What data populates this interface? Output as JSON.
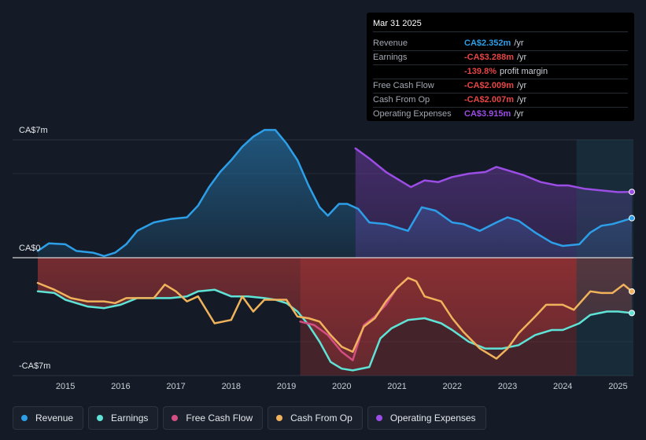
{
  "chart_data": {
    "type": "area",
    "y_unit": "CA$m",
    "ylim": [
      -7,
      7
    ],
    "xlim": [
      2014.5,
      2025.25
    ],
    "y_labels": {
      "top": "CA$7m",
      "zero": "CA$0",
      "bottom": "-CA$7m"
    },
    "x_ticks": [
      "2015",
      "2016",
      "2017",
      "2018",
      "2019",
      "2020",
      "2021",
      "2022",
      "2023",
      "2024",
      "2025"
    ],
    "series": [
      {
        "name": "Revenue",
        "color": "#2d9fe8",
        "points": [
          [
            2014.5,
            0.4
          ],
          [
            2014.7,
            0.85
          ],
          [
            2015.0,
            0.8
          ],
          [
            2015.2,
            0.4
          ],
          [
            2015.5,
            0.3
          ],
          [
            2015.7,
            0.1
          ],
          [
            2015.9,
            0.3
          ],
          [
            2016.1,
            0.8
          ],
          [
            2016.3,
            1.6
          ],
          [
            2016.6,
            2.1
          ],
          [
            2016.9,
            2.3
          ],
          [
            2017.2,
            2.4
          ],
          [
            2017.4,
            3.1
          ],
          [
            2017.6,
            4.2
          ],
          [
            2017.8,
            5.1
          ],
          [
            2018.0,
            5.8
          ],
          [
            2018.2,
            6.6
          ],
          [
            2018.4,
            7.2
          ],
          [
            2018.6,
            7.6
          ],
          [
            2018.8,
            7.6
          ],
          [
            2019.0,
            6.8
          ],
          [
            2019.2,
            5.8
          ],
          [
            2019.4,
            4.3
          ],
          [
            2019.6,
            3.0
          ],
          [
            2019.75,
            2.5
          ],
          [
            2019.95,
            3.2
          ],
          [
            2020.1,
            3.2
          ],
          [
            2020.3,
            2.9
          ],
          [
            2020.5,
            2.1
          ],
          [
            2020.8,
            2.0
          ],
          [
            2021.0,
            1.8
          ],
          [
            2021.2,
            1.6
          ],
          [
            2021.45,
            3.0
          ],
          [
            2021.7,
            2.8
          ],
          [
            2022.0,
            2.1
          ],
          [
            2022.2,
            2.0
          ],
          [
            2022.5,
            1.6
          ],
          [
            2022.8,
            2.1
          ],
          [
            2023.0,
            2.4
          ],
          [
            2023.2,
            2.2
          ],
          [
            2023.5,
            1.5
          ],
          [
            2023.8,
            0.9
          ],
          [
            2024.0,
            0.7
          ],
          [
            2024.3,
            0.8
          ],
          [
            2024.5,
            1.5
          ],
          [
            2024.7,
            1.9
          ],
          [
            2024.9,
            2.0
          ],
          [
            2025.1,
            2.2
          ],
          [
            2025.25,
            2.352
          ]
        ]
      },
      {
        "name": "Earnings",
        "color": "#5ee3d6",
        "points": [
          [
            2014.5,
            -2.0
          ],
          [
            2014.8,
            -2.1
          ],
          [
            2015.0,
            -2.5
          ],
          [
            2015.4,
            -2.9
          ],
          [
            2015.7,
            -3.0
          ],
          [
            2016.0,
            -2.8
          ],
          [
            2016.3,
            -2.4
          ],
          [
            2016.6,
            -2.4
          ],
          [
            2016.9,
            -2.4
          ],
          [
            2017.2,
            -2.3
          ],
          [
            2017.4,
            -2.0
          ],
          [
            2017.7,
            -1.9
          ],
          [
            2018.0,
            -2.3
          ],
          [
            2018.3,
            -2.3
          ],
          [
            2018.6,
            -2.4
          ],
          [
            2018.8,
            -2.5
          ],
          [
            2019.0,
            -2.7
          ],
          [
            2019.2,
            -3.2
          ],
          [
            2019.4,
            -4.0
          ],
          [
            2019.6,
            -5.0
          ],
          [
            2019.8,
            -6.2
          ],
          [
            2020.0,
            -6.6
          ],
          [
            2020.2,
            -6.7
          ],
          [
            2020.5,
            -6.5
          ],
          [
            2020.7,
            -4.8
          ],
          [
            2020.9,
            -4.2
          ],
          [
            2021.2,
            -3.7
          ],
          [
            2021.5,
            -3.6
          ],
          [
            2021.8,
            -3.9
          ],
          [
            2022.0,
            -4.3
          ],
          [
            2022.3,
            -5.0
          ],
          [
            2022.6,
            -5.4
          ],
          [
            2022.9,
            -5.4
          ],
          [
            2023.2,
            -5.2
          ],
          [
            2023.5,
            -4.6
          ],
          [
            2023.8,
            -4.3
          ],
          [
            2024.0,
            -4.3
          ],
          [
            2024.3,
            -3.9
          ],
          [
            2024.5,
            -3.4
          ],
          [
            2024.8,
            -3.2
          ],
          [
            2025.0,
            -3.2
          ],
          [
            2025.25,
            -3.288
          ]
        ]
      },
      {
        "name": "Free Cash Flow",
        "color": "#d34e82",
        "points": [
          [
            2019.25,
            -3.8
          ],
          [
            2019.5,
            -4.0
          ],
          [
            2019.75,
            -4.6
          ],
          [
            2020.0,
            -5.6
          ],
          [
            2020.2,
            -6.1
          ],
          [
            2020.4,
            -4.0
          ],
          [
            2020.6,
            -3.5
          ],
          [
            2020.8,
            -2.8
          ],
          [
            2021.0,
            -1.8
          ],
          [
            2021.2,
            -1.2
          ]
        ]
      },
      {
        "name": "Cash From Op",
        "color": "#f0b25b",
        "points": [
          [
            2014.5,
            -1.5
          ],
          [
            2014.8,
            -1.9
          ],
          [
            2015.1,
            -2.4
          ],
          [
            2015.4,
            -2.6
          ],
          [
            2015.7,
            -2.6
          ],
          [
            2015.9,
            -2.7
          ],
          [
            2016.1,
            -2.4
          ],
          [
            2016.4,
            -2.4
          ],
          [
            2016.6,
            -2.4
          ],
          [
            2016.8,
            -1.6
          ],
          [
            2017.0,
            -2.0
          ],
          [
            2017.2,
            -2.6
          ],
          [
            2017.4,
            -2.3
          ],
          [
            2017.7,
            -3.9
          ],
          [
            2018.0,
            -3.7
          ],
          [
            2018.2,
            -2.3
          ],
          [
            2018.4,
            -3.2
          ],
          [
            2018.6,
            -2.5
          ],
          [
            2018.8,
            -2.5
          ],
          [
            2019.0,
            -2.5
          ],
          [
            2019.2,
            -3.5
          ],
          [
            2019.4,
            -3.6
          ],
          [
            2019.6,
            -3.8
          ],
          [
            2019.8,
            -4.6
          ],
          [
            2020.0,
            -5.3
          ],
          [
            2020.2,
            -5.6
          ],
          [
            2020.4,
            -4.1
          ],
          [
            2020.6,
            -3.6
          ],
          [
            2020.8,
            -2.6
          ],
          [
            2021.0,
            -1.8
          ],
          [
            2021.2,
            -1.2
          ],
          [
            2021.35,
            -1.4
          ],
          [
            2021.5,
            -2.3
          ],
          [
            2021.8,
            -2.6
          ],
          [
            2022.0,
            -3.6
          ],
          [
            2022.2,
            -4.4
          ],
          [
            2022.5,
            -5.4
          ],
          [
            2022.8,
            -6.0
          ],
          [
            2023.0,
            -5.4
          ],
          [
            2023.2,
            -4.5
          ],
          [
            2023.5,
            -3.5
          ],
          [
            2023.7,
            -2.8
          ],
          [
            2024.0,
            -2.8
          ],
          [
            2024.2,
            -3.1
          ],
          [
            2024.5,
            -2.0
          ],
          [
            2024.7,
            -2.1
          ],
          [
            2024.9,
            -2.1
          ],
          [
            2025.1,
            -1.6
          ],
          [
            2025.25,
            -2.007
          ]
        ]
      },
      {
        "name": "Operating Expenses",
        "color": "#9b4de6",
        "points": [
          [
            2020.25,
            6.5
          ],
          [
            2020.5,
            5.9
          ],
          [
            2020.8,
            5.1
          ],
          [
            2021.0,
            4.7
          ],
          [
            2021.25,
            4.2
          ],
          [
            2021.5,
            4.6
          ],
          [
            2021.75,
            4.5
          ],
          [
            2022.0,
            4.8
          ],
          [
            2022.3,
            5.0
          ],
          [
            2022.6,
            5.1
          ],
          [
            2022.8,
            5.4
          ],
          [
            2023.0,
            5.2
          ],
          [
            2023.3,
            4.9
          ],
          [
            2023.6,
            4.5
          ],
          [
            2023.9,
            4.3
          ],
          [
            2024.1,
            4.3
          ],
          [
            2024.4,
            4.1
          ],
          [
            2024.7,
            4.0
          ],
          [
            2025.0,
            3.9
          ],
          [
            2025.25,
            3.915
          ]
        ]
      }
    ],
    "forecast_start": 2024.25
  },
  "tooltip": {
    "date": "Mar 31 2025",
    "rows": [
      {
        "label": "Revenue",
        "value": "CA$2.352m",
        "unit": "/yr",
        "color": "#2d9fe8"
      },
      {
        "label": "Earnings",
        "value": "-CA$3.288m",
        "unit": "/yr",
        "color": "#e64545"
      },
      {
        "label": "",
        "value": "-139.8%",
        "unit": "profit margin",
        "color": "#e64545"
      },
      {
        "label": "Free Cash Flow",
        "value": "-CA$2.009m",
        "unit": "/yr",
        "color": "#e64545"
      },
      {
        "label": "Cash From Op",
        "value": "-CA$2.007m",
        "unit": "/yr",
        "color": "#e64545"
      },
      {
        "label": "Operating Expenses",
        "value": "CA$3.915m",
        "unit": "/yr",
        "color": "#9b4de6"
      }
    ]
  },
  "legend": [
    {
      "label": "Revenue",
      "color": "#2d9fe8"
    },
    {
      "label": "Earnings",
      "color": "#5ee3d6"
    },
    {
      "label": "Free Cash Flow",
      "color": "#d34e82"
    },
    {
      "label": "Cash From Op",
      "color": "#f0b25b"
    },
    {
      "label": "Operating Expenses",
      "color": "#9b4de6"
    }
  ]
}
